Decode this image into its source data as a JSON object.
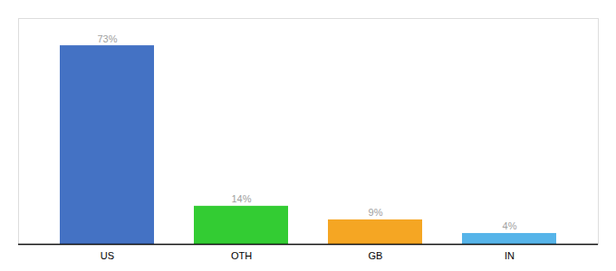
{
  "chart_data": {
    "type": "bar",
    "categories": [
      "US",
      "OTH",
      "GB",
      "IN"
    ],
    "values": [
      73,
      14,
      9,
      4
    ],
    "value_labels": [
      "73%",
      "14%",
      "9%",
      "4%"
    ],
    "colors": [
      "#4472c4",
      "#33cc33",
      "#f5a623",
      "#56b4e9"
    ],
    "ylim": [
      0,
      83
    ],
    "data_labels": true,
    "tick_labels": "x",
    "grid": false
  }
}
